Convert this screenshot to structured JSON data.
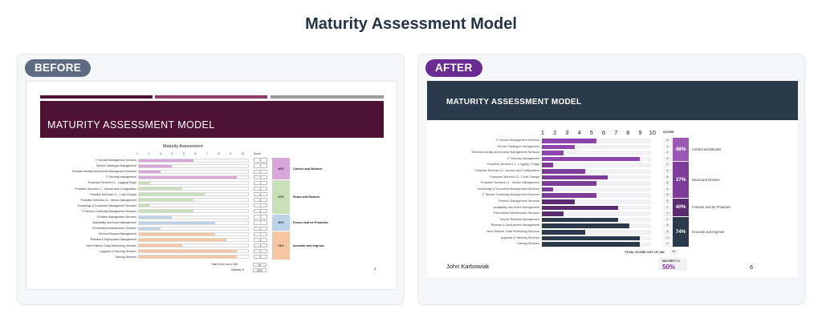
{
  "page_title": "Maturity Assessment Model",
  "before": {
    "pill": "BEFORE",
    "stripe_colors": [
      "#4e1334",
      "#8e3b6e",
      "#9a9a9a"
    ],
    "banner_title": "MATURITY ASSESSMENT MODEL",
    "chart_title": "Maturity Assessment",
    "axis_ticks": [
      "1",
      "2",
      "3",
      "4",
      "5",
      "6",
      "7",
      "8",
      "9",
      "10"
    ],
    "score_header": "Score",
    "rows": [
      {
        "label": "IT Service Management Services",
        "value": 5,
        "score": "5",
        "group": 0
      },
      {
        "label": "Service Catalogue Management",
        "value": 3,
        "score": "3",
        "group": 0
      },
      {
        "label": "Services Identity and Access Management Services",
        "value": 2,
        "score": "2",
        "group": 0
      },
      {
        "label": "IT Security management",
        "value": 9,
        "score": "9",
        "group": 0
      },
      {
        "label": "Proactive Services L1 - Logging/Triage",
        "value": 1,
        "score": "1",
        "group": 1
      },
      {
        "label": "Proactive Services L2 - Access and Configuration",
        "value": 4,
        "score": "4",
        "group": 1
      },
      {
        "label": "Proactive Services L3 - Code Change",
        "value": 6,
        "score": "6",
        "group": 1
      },
      {
        "label": "Proactive Services L4 - Vendor Management",
        "value": 5,
        "score": "5",
        "group": 1
      },
      {
        "label": "Knowledge & Document Management Services",
        "value": 1,
        "score": "1",
        "group": 1
      },
      {
        "label": "IT Service Continuity Management Services",
        "value": 5,
        "score": "5",
        "group": 1
      },
      {
        "label": "Problem Management Services",
        "value": 3,
        "score": "3",
        "group": 2
      },
      {
        "label": "Availability and Event Management",
        "value": 7,
        "score": "7",
        "group": 2
      },
      {
        "label": "Preventative Maintenance Services",
        "value": 2,
        "score": "2",
        "group": 2
      },
      {
        "label": "Service Request Management",
        "value": 7,
        "score": "7",
        "group": 3
      },
      {
        "label": "Release & Deployment Management",
        "value": 8,
        "score": "8",
        "group": 3
      },
      {
        "label": "New Platform, Data Refreshing Services",
        "value": 4,
        "score": "4",
        "group": 3
      },
      {
        "label": "Upgrade & Patching Services",
        "value": 9,
        "score": "9",
        "group": 3
      },
      {
        "label": "Training Services",
        "value": 9,
        "score": "9",
        "group": 3
      }
    ],
    "groups": [
      {
        "pct": "48%",
        "name": "Control and Monitor",
        "color": "#d9a6d8"
      },
      {
        "pct": "37%",
        "name": "React and Restore",
        "color": "#c8e0b8"
      },
      {
        "pct": "40%",
        "name": "Forsee and be Proactive",
        "color": "#bcd2e8"
      },
      {
        "pct": "74%",
        "name": "Innovate and Improve",
        "color": "#f4c6a4"
      }
    ],
    "fill_colors": [
      "#d9a6d8",
      "#c8e0b8",
      "#bcd2e8",
      "#f4c6a4"
    ],
    "total_label": "Total Score out of 180",
    "total_value": "90",
    "maturity_label": "Maturity %",
    "maturity_value": "50%",
    "page_number": "6"
  },
  "after": {
    "pill": "AFTER",
    "banner_title": "MATURITY ASSESSMENT MODEL",
    "axis_ticks": [
      "1",
      "2",
      "3",
      "4",
      "5",
      "6",
      "7",
      "8",
      "9",
      "10"
    ],
    "score_header": "SCORE",
    "rows": [
      {
        "label": "IT Service Management Services",
        "value": 5,
        "score": "5",
        "group": 0
      },
      {
        "label": "Service Catalogue Management",
        "value": 3,
        "score": "3",
        "group": 0
      },
      {
        "label": "Services Identity and Access Management Services",
        "value": 2,
        "score": "2",
        "group": 0
      },
      {
        "label": "IT Security Management",
        "value": 9,
        "score": "9",
        "group": 0
      },
      {
        "label": "Proactive Services L1 - Logging / Triage",
        "value": 1,
        "score": "1",
        "group": 1
      },
      {
        "label": "Proactive Services L2 - Access and Configuration",
        "value": 4,
        "score": "4",
        "group": 1
      },
      {
        "label": "Proactive Services L3 - Code Change",
        "value": 6,
        "score": "6",
        "group": 1
      },
      {
        "label": "Proactive Services L4 - Vendor Management",
        "value": 5,
        "score": "5",
        "group": 1
      },
      {
        "label": "Knowledge & Document Management Services",
        "value": 1,
        "score": "1",
        "group": 1
      },
      {
        "label": "IT Service Continuity Management Services",
        "value": 5,
        "score": "5",
        "group": 1
      },
      {
        "label": "Problem Management Services",
        "value": 3,
        "score": "3",
        "group": 2
      },
      {
        "label": "Availability and Event Management",
        "value": 7,
        "score": "7",
        "group": 2
      },
      {
        "label": "Preventative Maintenance Services",
        "value": 2,
        "score": "2",
        "group": 2
      },
      {
        "label": "Service Request Management",
        "value": 7,
        "score": "7",
        "group": 3
      },
      {
        "label": "Release & Deployment Management",
        "value": 8,
        "score": "8",
        "group": 3
      },
      {
        "label": "New Platform, Data Refreshing Services",
        "value": 4,
        "score": "4",
        "group": 3
      },
      {
        "label": "Upgrade & Patching Services",
        "value": 9,
        "score": "9",
        "group": 3
      },
      {
        "label": "Training Services",
        "value": 9,
        "score": "9",
        "group": 3
      }
    ],
    "groups": [
      {
        "pct": "48%",
        "name": "Control and Monitor",
        "color": "#9b59b6"
      },
      {
        "pct": "37%",
        "name": "React and Restore",
        "color": "#7d3c98"
      },
      {
        "pct": "40%",
        "name": "Foresee and be Proactive",
        "color": "#5b2c6f"
      },
      {
        "pct": "74%",
        "name": "Innovate and Improve",
        "color": "#2b3a4a"
      }
    ],
    "fill_colors": [
      "#8e44ad",
      "#7d3c98",
      "#5b2c6f",
      "#2b3a4a"
    ],
    "total_label": "TOTAL SCORE OUT OF 180",
    "total_value": "90",
    "author": "John Karbowiak",
    "maturity_label": "MATURITY %",
    "maturity_value": "50%",
    "page_number": "6"
  }
}
